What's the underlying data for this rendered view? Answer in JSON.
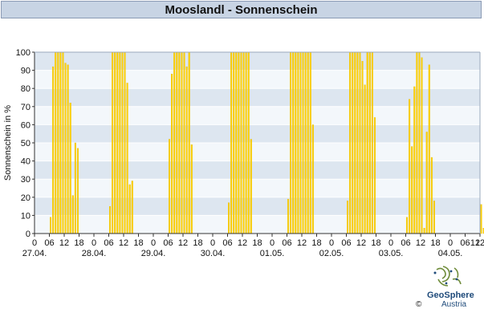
{
  "header": {
    "title": "Mooslandl - Sonnenschein"
  },
  "logo": {
    "name": "GeoSphere",
    "sub": "Austria",
    "copyright": "©"
  },
  "colors": {
    "bar": "#ffd200",
    "bar_edge": "#e0b400",
    "band_dark": "#dde6f0",
    "band_light": "#f3f7fb",
    "grid": "#ffffff"
  },
  "chart_data": {
    "type": "bar",
    "ylabel": "Sonnenschein in %",
    "ylim": [
      0,
      100
    ],
    "yticks": [
      0,
      10,
      20,
      30,
      40,
      50,
      60,
      70,
      80,
      90,
      100
    ],
    "x_hour_ticks": [
      "0",
      "06",
      "12",
      "18"
    ],
    "x_hour_tick_end": "12",
    "days": [
      "27.04.",
      "28.04.",
      "29.04.",
      "30.04.",
      "01.05.",
      "02.05.",
      "03.05.",
      "04.05."
    ],
    "x_range_hours": [
      0,
      180
    ],
    "hourly_percent": [
      [
        0,
        0,
        0,
        0,
        0,
        0,
        9,
        92,
        100,
        100,
        100,
        100,
        94,
        93,
        72,
        21,
        50,
        47,
        0,
        0,
        0,
        0,
        0,
        0
      ],
      [
        0,
        0,
        0,
        0,
        0,
        0,
        15,
        100,
        100,
        100,
        100,
        100,
        100,
        83,
        27,
        29,
        0,
        0,
        0,
        0,
        0,
        0,
        0,
        0
      ],
      [
        0,
        0,
        0,
        0,
        0,
        0,
        52,
        88,
        100,
        100,
        100,
        100,
        100,
        92,
        100,
        49,
        0,
        0,
        0,
        0,
        0,
        0,
        0,
        0
      ],
      [
        0,
        0,
        0,
        0,
        0,
        0,
        17,
        100,
        100,
        100,
        100,
        100,
        100,
        100,
        100,
        52,
        0,
        0,
        0,
        0,
        0,
        0,
        0,
        0
      ],
      [
        0,
        0,
        0,
        0,
        0,
        0,
        19,
        100,
        100,
        100,
        100,
        100,
        100,
        100,
        100,
        100,
        60,
        0,
        0,
        0,
        0,
        0,
        0,
        0
      ],
      [
        0,
        0,
        0,
        0,
        0,
        0,
        18,
        100,
        100,
        100,
        100,
        100,
        95,
        82,
        100,
        100,
        100,
        64,
        0,
        0,
        0,
        0,
        0,
        0
      ],
      [
        0,
        0,
        0,
        0,
        0,
        0,
        9,
        74,
        48,
        81,
        100,
        100,
        97,
        3,
        56,
        93,
        42,
        18,
        0,
        0,
        0,
        0,
        0,
        0
      ],
      [
        0,
        0,
        0,
        0,
        0,
        0,
        0,
        0,
        0,
        0,
        0,
        0,
        16,
        3
      ]
    ]
  }
}
